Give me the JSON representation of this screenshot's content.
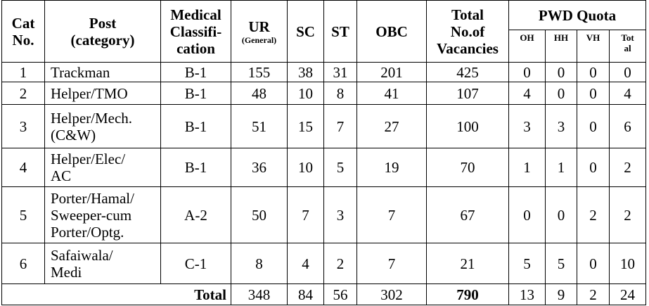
{
  "table": {
    "header": [
      [
        "Cat",
        "No."
      ],
      [
        "Post",
        "(category)"
      ],
      [
        "Medical",
        "Classifi-",
        "cation"
      ],
      [
        "UR",
        "(General)"
      ],
      [
        "SC"
      ],
      [
        "ST"
      ],
      [
        "OBC"
      ],
      [
        "Total",
        "No.of",
        "Vacancies"
      ]
    ],
    "pwd_header": "PWD Quota",
    "pwd_sub": [
      [
        "OH"
      ],
      [
        "HH"
      ],
      [
        "VH"
      ],
      [
        "Tot",
        "al"
      ]
    ],
    "rows": [
      {
        "cat": "1",
        "post": [
          "Trackman"
        ],
        "medical": "B-1",
        "values": [
          155,
          38,
          31,
          201,
          425,
          0,
          0,
          0,
          0
        ]
      },
      {
        "cat": "2",
        "post": [
          "Helper/TMO"
        ],
        "medical": "B-1",
        "values": [
          48,
          10,
          8,
          41,
          107,
          4,
          0,
          0,
          4
        ]
      },
      {
        "cat": "3",
        "post": [
          "Helper/Mech.",
          "(C&W)"
        ],
        "medical": "B-1",
        "values": [
          51,
          15,
          7,
          27,
          100,
          3,
          3,
          0,
          6
        ]
      },
      {
        "cat": "4",
        "post": [
          "Helper/Elec/",
          "AC"
        ],
        "medical": "B-1",
        "values": [
          36,
          10,
          5,
          19,
          70,
          1,
          1,
          0,
          2
        ]
      },
      {
        "cat": "5",
        "post": [
          "Porter/Hamal/",
          "Sweeper-cum",
          "Porter/Optg."
        ],
        "medical": "A-2",
        "values": [
          50,
          7,
          3,
          7,
          67,
          0,
          0,
          2,
          2
        ]
      },
      {
        "cat": "6",
        "post": [
          "Safaiwala/",
          "Medi"
        ],
        "medical": "C-1",
        "values": [
          8,
          4,
          2,
          7,
          21,
          5,
          5,
          0,
          10
        ]
      }
    ],
    "total": {
      "label": "Total",
      "values": [
        348,
        84,
        56,
        302,
        790,
        13,
        9,
        2,
        24
      ]
    }
  }
}
